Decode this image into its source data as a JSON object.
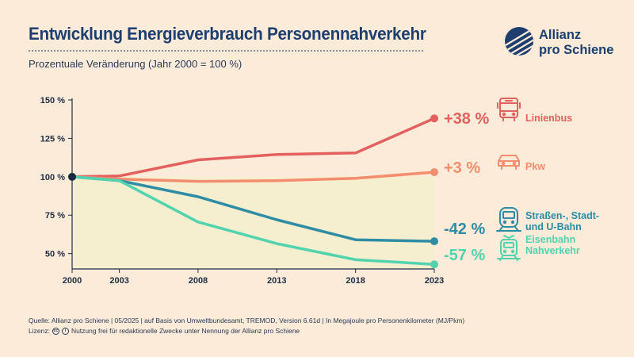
{
  "header": {
    "title": "Entwicklung Energieverbrauch Personennahverkehr",
    "subtitle": "Prozentuale Veränderung (Jahr 2000 = 100 %)"
  },
  "logo": {
    "line1": "Allianz",
    "line2": "pro Schiene"
  },
  "footer": {
    "source": "Quelle: Allianz pro Schiene | 05/2025 | auf Basis von Umweltbundesamt, TREMOD, Version 6.61d | In Megajoule pro Personenkilometer (MJ/Pkm)",
    "license_label": "Lizenz:",
    "license_text": "Nutzung frei für redaktionelle Zwecke unter Nennung der Allianz pro Schiene"
  },
  "colors": {
    "background": "#fcebd9",
    "plot_fill": "#f6efcf",
    "title": "#1d3e6e"
  },
  "chart_data": {
    "type": "line",
    "title": "Entwicklung Energieverbrauch Personennahverkehr",
    "ylabel": "Prozentuale Veränderung (Jahr 2000 = 100 %)",
    "x": [
      2000,
      2003,
      2008,
      2013,
      2018,
      2023
    ],
    "xticks": [
      "2000",
      "2003",
      "2008",
      "2013",
      "2018",
      "2023"
    ],
    "ylim": [
      40,
      150
    ],
    "yticks": [
      50,
      75,
      100,
      125,
      150
    ],
    "ytick_labels": [
      "50 %",
      "75 %",
      "100 %",
      "125 %",
      "150 %"
    ],
    "series": [
      {
        "name": "Linienbus",
        "values": [
          100,
          100.5,
          111,
          114.5,
          115.5,
          138
        ],
        "color": "#e4605e",
        "change": "+38 %",
        "labels": [
          "Linienbus"
        ],
        "icon": "bus-icon"
      },
      {
        "name": "Pkw",
        "values": [
          100,
          98.5,
          97,
          97.5,
          99,
          103
        ],
        "color": "#f28d6e",
        "change": "+3 %",
        "labels": [
          "Pkw"
        ],
        "icon": "car-icon"
      },
      {
        "name": "Straßen-, Stadt- und U-Bahn",
        "values": [
          100,
          97.5,
          87,
          72,
          59,
          58
        ],
        "color": "#2e8ca5",
        "change": "-42 %",
        "labels": [
          "Straßen-, Stadt-",
          "und U-Bahn"
        ],
        "icon": "tram-icon"
      },
      {
        "name": "Eisenbahn Nahverkehr",
        "values": [
          100,
          97.5,
          70.5,
          56.5,
          46,
          43
        ],
        "color": "#52d3ad",
        "change": "-57 %",
        "labels": [
          "Eisenbahn",
          "Nahverkehr"
        ],
        "icon": "train-icon"
      }
    ]
  }
}
